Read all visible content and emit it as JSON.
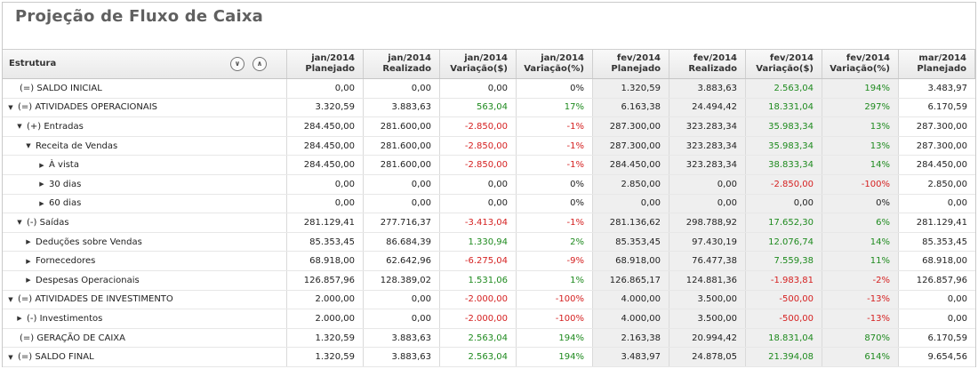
{
  "title": "Projeção de Fluxo de Caixa",
  "header": {
    "estrutura": "Estrutura",
    "columns": [
      [
        "jan/2014",
        "Planejado"
      ],
      [
        "jan/2014",
        "Realizado"
      ],
      [
        "jan/2014",
        "Variação($)"
      ],
      [
        "jan/2014",
        "Variação(%)"
      ],
      [
        "fev/2014",
        "Planejado"
      ],
      [
        "fev/2014",
        "Realizado"
      ],
      [
        "fev/2014",
        "Variação($)"
      ],
      [
        "fev/2014",
        "Variação(%)"
      ],
      [
        "mar/2014",
        "Planejado"
      ]
    ]
  },
  "colors": {
    "positive": "#1e8a1e",
    "negative": "#d52121",
    "shade": "#efefef"
  },
  "rows": [
    {
      "label": "(=) SALDO INICIAL",
      "indent": 0,
      "toggle": "none",
      "values": [
        "0,00",
        "0,00",
        "0,00",
        "0%",
        "1.320,59",
        "3.883,63",
        "2.563,04",
        "194%",
        "3.483,97"
      ]
    },
    {
      "label": "(=) ATIVIDADES OPERACIONAIS",
      "indent": 0,
      "toggle": "down",
      "values": [
        "3.320,59",
        "3.883,63",
        "563,04",
        "17%",
        "6.163,38",
        "24.494,42",
        "18.331,04",
        "297%",
        "6.170,59"
      ]
    },
    {
      "label": "(+) Entradas",
      "indent": 1,
      "toggle": "down",
      "values": [
        "284.450,00",
        "281.600,00",
        "-2.850,00",
        "-1%",
        "287.300,00",
        "323.283,34",
        "35.983,34",
        "13%",
        "287.300,00"
      ]
    },
    {
      "label": "Receita de Vendas",
      "indent": 2,
      "toggle": "down",
      "values": [
        "284.450,00",
        "281.600,00",
        "-2.850,00",
        "-1%",
        "287.300,00",
        "323.283,34",
        "35.983,34",
        "13%",
        "287.300,00"
      ]
    },
    {
      "label": "À vista",
      "indent": 3,
      "toggle": "right",
      "values": [
        "284.450,00",
        "281.600,00",
        "-2.850,00",
        "-1%",
        "284.450,00",
        "323.283,34",
        "38.833,34",
        "14%",
        "284.450,00"
      ]
    },
    {
      "label": "30 dias",
      "indent": 3,
      "toggle": "right",
      "values": [
        "0,00",
        "0,00",
        "0,00",
        "0%",
        "2.850,00",
        "0,00",
        "-2.850,00",
        "-100%",
        "2.850,00"
      ]
    },
    {
      "label": "60 dias",
      "indent": 3,
      "toggle": "right",
      "values": [
        "0,00",
        "0,00",
        "0,00",
        "0%",
        "0,00",
        "0,00",
        "0,00",
        "0%",
        "0,00"
      ]
    },
    {
      "label": "(-) Saídas",
      "indent": 1,
      "toggle": "down",
      "values": [
        "281.129,41",
        "277.716,37",
        "-3.413,04",
        "-1%",
        "281.136,62",
        "298.788,92",
        "17.652,30",
        "6%",
        "281.129,41"
      ]
    },
    {
      "label": "Deduções sobre Vendas",
      "indent": 2,
      "toggle": "right",
      "values": [
        "85.353,45",
        "86.684,39",
        "1.330,94",
        "2%",
        "85.353,45",
        "97.430,19",
        "12.076,74",
        "14%",
        "85.353,45"
      ]
    },
    {
      "label": "Fornecedores",
      "indent": 2,
      "toggle": "right",
      "values": [
        "68.918,00",
        "62.642,96",
        "-6.275,04",
        "-9%",
        "68.918,00",
        "76.477,38",
        "7.559,38",
        "11%",
        "68.918,00"
      ]
    },
    {
      "label": "Despesas Operacionais",
      "indent": 2,
      "toggle": "right",
      "values": [
        "126.857,96",
        "128.389,02",
        "1.531,06",
        "1%",
        "126.865,17",
        "124.881,36",
        "-1.983,81",
        "-2%",
        "126.857,96"
      ]
    },
    {
      "label": "(=) ATIVIDADES DE INVESTIMENTO",
      "indent": 0,
      "toggle": "down",
      "values": [
        "2.000,00",
        "0,00",
        "-2.000,00",
        "-100%",
        "4.000,00",
        "3.500,00",
        "-500,00",
        "-13%",
        "0,00"
      ]
    },
    {
      "label": "(-) Investimentos",
      "indent": 1,
      "toggle": "right",
      "values": [
        "2.000,00",
        "0,00",
        "-2.000,00",
        "-100%",
        "4.000,00",
        "3.500,00",
        "-500,00",
        "-13%",
        "0,00"
      ]
    },
    {
      "label": "(=) GERAÇÃO DE CAIXA",
      "indent": 0,
      "toggle": "none",
      "values": [
        "1.320,59",
        "3.883,63",
        "2.563,04",
        "194%",
        "2.163,38",
        "20.994,42",
        "18.831,04",
        "870%",
        "6.170,59"
      ]
    },
    {
      "label": "(=) SALDO FINAL",
      "indent": 0,
      "toggle": "down",
      "values": [
        "1.320,59",
        "3.883,63",
        "2.563,04",
        "194%",
        "3.483,97",
        "24.878,05",
        "21.394,08",
        "614%",
        "9.654,56"
      ]
    }
  ]
}
